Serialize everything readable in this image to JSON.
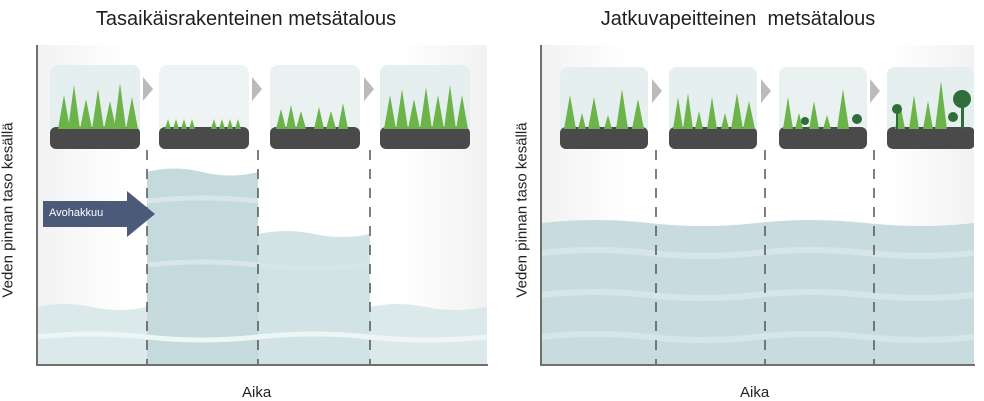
{
  "panels": {
    "left": {
      "title": "Tasaikäisrakenteinen metsätalous",
      "y_label": "Veden pinnan taso kesällä",
      "x_label": "Aika",
      "arrow_label": "Avohakkuu"
    },
    "right": {
      "title": "Jatkuvapeitteinen  metsätalous",
      "y_label": "Veden pinnan taso kesällä",
      "x_label": "Aika"
    }
  },
  "colors": {
    "water_light": "#dce9ea",
    "water_dark": "#c3d9dc",
    "tree": "#6cb34a",
    "ground": "#4a4a4a",
    "arrow": "#4a5a78",
    "axis": "#707070"
  },
  "icons": [
    "forest-stand-icon",
    "clearcut-icon",
    "regrowth-icon",
    "deciduous-tree-icon",
    "chevron-right-icon"
  ]
}
